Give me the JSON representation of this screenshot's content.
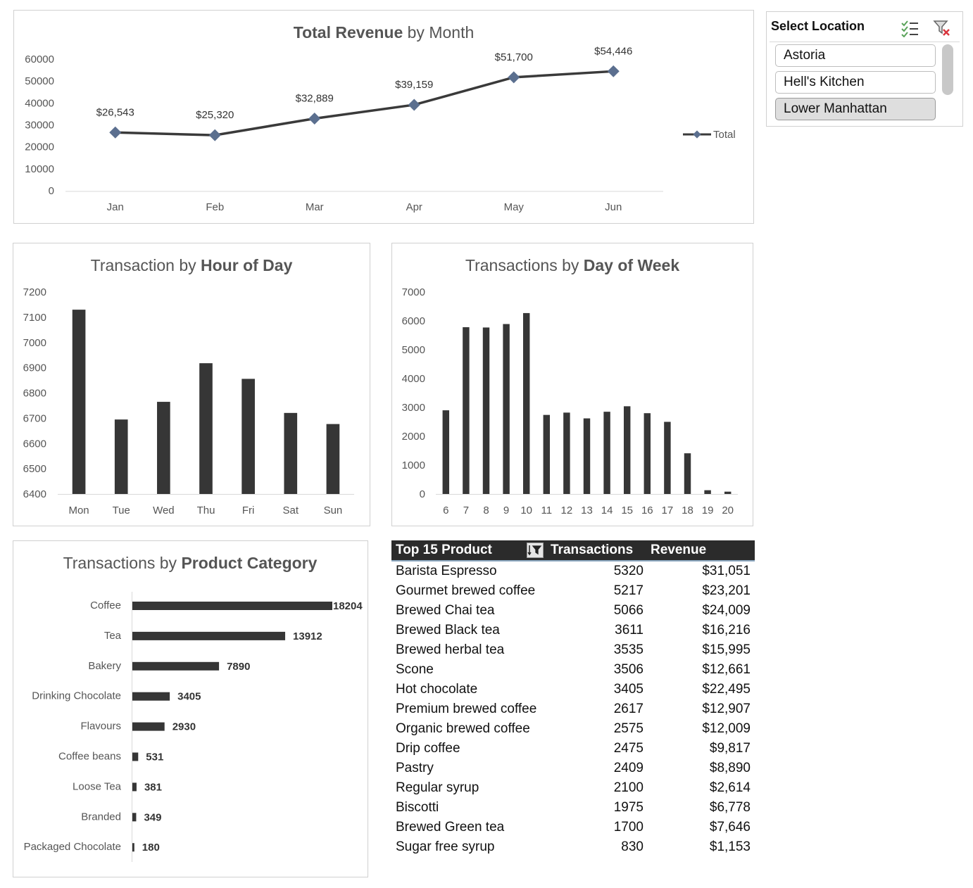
{
  "slicer": {
    "header": "Select Location",
    "multi_select_icon": "multi-select-icon",
    "clear_filter_icon": "clear-filter-icon",
    "items": [
      {
        "label": "Astoria",
        "selected": false
      },
      {
        "label": "Hell's Kitchen",
        "selected": false
      },
      {
        "label": "Lower Manhattan",
        "selected": true
      }
    ]
  },
  "table": {
    "headers": {
      "product": "Top 15 Product",
      "transactions": "Transactions",
      "revenue": "Revenue"
    },
    "filter_icon": "sort-filter-icon",
    "rows": [
      {
        "product": "Barista Espresso",
        "transactions": "5320",
        "revenue": "$31,051"
      },
      {
        "product": "Gourmet brewed coffee",
        "transactions": "5217",
        "revenue": "$23,201"
      },
      {
        "product": "Brewed Chai tea",
        "transactions": "5066",
        "revenue": "$24,009"
      },
      {
        "product": "Brewed Black tea",
        "transactions": "3611",
        "revenue": "$16,216"
      },
      {
        "product": "Brewed herbal tea",
        "transactions": "3535",
        "revenue": "$15,995"
      },
      {
        "product": "Scone",
        "transactions": "3506",
        "revenue": "$12,661"
      },
      {
        "product": "Hot chocolate",
        "transactions": "3405",
        "revenue": "$22,495"
      },
      {
        "product": "Premium brewed coffee",
        "transactions": "2617",
        "revenue": "$12,907"
      },
      {
        "product": "Organic brewed coffee",
        "transactions": "2575",
        "revenue": "$12,009"
      },
      {
        "product": "Drip coffee",
        "transactions": "2475",
        "revenue": "$9,817"
      },
      {
        "product": "Pastry",
        "transactions": "2409",
        "revenue": "$8,890"
      },
      {
        "product": "Regular syrup",
        "transactions": "2100",
        "revenue": "$2,614"
      },
      {
        "product": "Biscotti",
        "transactions": "1975",
        "revenue": "$6,778"
      },
      {
        "product": "Brewed Green tea",
        "transactions": "1700",
        "revenue": "$7,646"
      },
      {
        "product": "Sugar free syrup",
        "transactions": "830",
        "revenue": "$1,153"
      }
    ]
  },
  "chart_data": [
    {
      "id": "revenue",
      "type": "line",
      "title_regular_pre": "",
      "title_bold": "Total Revenue",
      "title_regular_post": " by Month",
      "categories": [
        "Jan",
        "Feb",
        "Mar",
        "Apr",
        "May",
        "Jun"
      ],
      "series": [
        {
          "name": "Total",
          "values": [
            26543,
            25320,
            32889,
            39159,
            51700,
            54446
          ]
        }
      ],
      "data_labels": [
        "$26,543",
        "$25,320",
        "$32,889",
        "$39,159",
        "$51,700",
        "$54,446"
      ],
      "ylim": [
        0,
        60000
      ],
      "yticks": [
        0,
        10000,
        20000,
        30000,
        40000,
        50000,
        60000
      ],
      "line_color": "#3a3a3a",
      "marker_color": "#5b6f8f",
      "legend": "right",
      "grid": false
    },
    {
      "id": "hour",
      "type": "bar",
      "title_regular_pre": "Transaction by ",
      "title_bold": "Hour of Day",
      "title_regular_post": "",
      "categories": [
        "Mon",
        "Tue",
        "Wed",
        "Thu",
        "Fri",
        "Sat",
        "Sun"
      ],
      "values": [
        7130,
        6695,
        6765,
        6918,
        6856,
        6721,
        6677
      ],
      "ylim": [
        6400,
        7200
      ],
      "yticks": [
        6400,
        6500,
        6600,
        6700,
        6800,
        6900,
        7000,
        7100,
        7200
      ],
      "bar_color": "#363636",
      "grid": false
    },
    {
      "id": "dow",
      "type": "bar",
      "title_regular_pre": "Transactions by ",
      "title_bold": "Day of Week",
      "title_regular_post": "",
      "categories": [
        "6",
        "7",
        "8",
        "9",
        "10",
        "11",
        "12",
        "13",
        "14",
        "15",
        "16",
        "17",
        "18",
        "19",
        "20"
      ],
      "values": [
        2900,
        5780,
        5770,
        5890,
        6270,
        2740,
        2820,
        2620,
        2850,
        3040,
        2800,
        2500,
        1410,
        130,
        80
      ],
      "ylim": [
        0,
        7000
      ],
      "yticks": [
        0,
        1000,
        2000,
        3000,
        4000,
        5000,
        6000,
        7000
      ],
      "bar_color": "#363636",
      "grid": false
    },
    {
      "id": "category",
      "type": "bar",
      "orientation": "horizontal",
      "title_regular_pre": "Transactions by ",
      "title_bold": "Product Category",
      "title_regular_post": "",
      "categories": [
        "Coffee",
        "Tea",
        "Bakery",
        "Drinking Chocolate",
        "Flavours",
        "Coffee beans",
        "Loose Tea",
        "Branded",
        "Packaged Chocolate"
      ],
      "values": [
        18204,
        13912,
        7890,
        3405,
        2930,
        531,
        381,
        349,
        180
      ],
      "xlim": [
        0,
        18204
      ],
      "bar_color": "#363636",
      "grid": false
    }
  ]
}
